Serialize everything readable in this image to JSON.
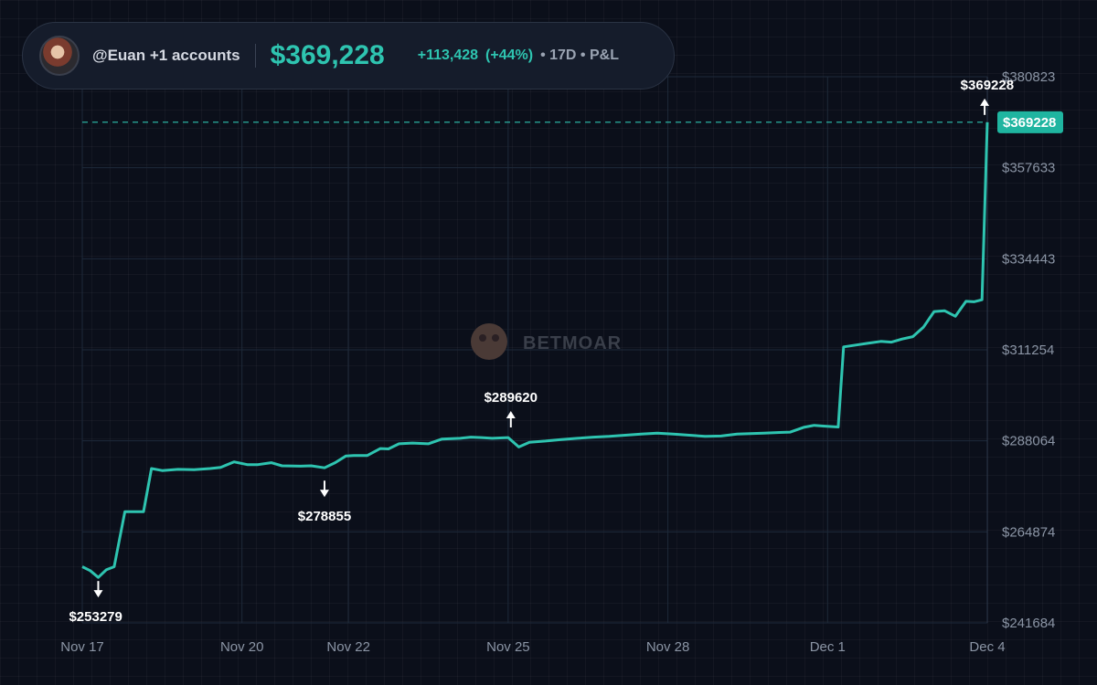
{
  "header": {
    "account": "@Euan +1 accounts",
    "total": "$369,228",
    "change": "+113,428",
    "change_pct": "(+44%)",
    "meta": "• 17D • P&L"
  },
  "watermark": "BETMOAR",
  "colors": {
    "line": "#2ec4b0",
    "background": "#0b0f1a",
    "grid": "#1e2a3a"
  },
  "chart_data": {
    "type": "line",
    "x_ticks": [
      {
        "label": "Nov 17",
        "day": 0
      },
      {
        "label": "Nov 20",
        "day": 3
      },
      {
        "label": "Nov 22",
        "day": 5
      },
      {
        "label": "Nov 25",
        "day": 8
      },
      {
        "label": "Nov 28",
        "day": 11
      },
      {
        "label": "Dec 1",
        "day": 14
      },
      {
        "label": "Dec 4",
        "day": 17
      }
    ],
    "y_ticks": [
      241684,
      264874,
      288064,
      311254,
      334443,
      357633,
      380823
    ],
    "y_tick_labels": [
      "$241684",
      "$264874",
      "$288064",
      "$311254",
      "$334443",
      "$357633",
      "$380823"
    ],
    "ylim": [
      241684,
      380823
    ],
    "xlim": [
      0,
      17
    ],
    "current": {
      "value": 369228,
      "label": "$369228"
    },
    "annotations": [
      {
        "label": "$253279",
        "day": 0.3,
        "value": 253279,
        "dir": "down"
      },
      {
        "label": "$278855",
        "day": 4.55,
        "value": 278855,
        "dir": "down"
      },
      {
        "label": "$289620",
        "day": 8.05,
        "value": 289620,
        "dir": "up"
      },
      {
        "label": "$369228",
        "day": 16.95,
        "value": 369228,
        "dir": "up"
      }
    ],
    "series": [
      {
        "points": [
          [
            0.0,
            256000
          ],
          [
            0.15,
            255000
          ],
          [
            0.3,
            253279
          ],
          [
            0.45,
            255200
          ],
          [
            0.6,
            256000
          ],
          [
            0.8,
            270000
          ],
          [
            1.15,
            270000
          ],
          [
            1.3,
            281000
          ],
          [
            1.5,
            280500
          ],
          [
            1.8,
            280800
          ],
          [
            2.1,
            280700
          ],
          [
            2.4,
            281000
          ],
          [
            2.6,
            281300
          ],
          [
            2.85,
            282700
          ],
          [
            3.1,
            282000
          ],
          [
            3.3,
            282000
          ],
          [
            3.55,
            282500
          ],
          [
            3.75,
            281700
          ],
          [
            4.1,
            281600
          ],
          [
            4.3,
            281700
          ],
          [
            4.55,
            281200
          ],
          [
            4.75,
            282500
          ],
          [
            4.95,
            284200
          ],
          [
            5.1,
            284300
          ],
          [
            5.35,
            284300
          ],
          [
            5.6,
            286100
          ],
          [
            5.75,
            286000
          ],
          [
            5.95,
            287300
          ],
          [
            6.2,
            287500
          ],
          [
            6.35,
            287400
          ],
          [
            6.5,
            287300
          ],
          [
            6.75,
            288500
          ],
          [
            7.1,
            288700
          ],
          [
            7.3,
            289000
          ],
          [
            7.5,
            288900
          ],
          [
            7.7,
            288700
          ],
          [
            8.0,
            288900
          ],
          [
            8.2,
            286500
          ],
          [
            8.4,
            287700
          ],
          [
            8.7,
            288000
          ],
          [
            9.0,
            288400
          ],
          [
            9.3,
            288700
          ],
          [
            9.6,
            289000
          ],
          [
            9.9,
            289200
          ],
          [
            10.2,
            289500
          ],
          [
            10.5,
            289800
          ],
          [
            10.8,
            290000
          ],
          [
            11.1,
            289800
          ],
          [
            11.4,
            289500
          ],
          [
            11.7,
            289200
          ],
          [
            12.0,
            289300
          ],
          [
            12.3,
            289800
          ],
          [
            12.55,
            289900
          ],
          [
            12.8,
            290000
          ],
          [
            13.1,
            290200
          ],
          [
            13.3,
            290300
          ],
          [
            13.55,
            291500
          ],
          [
            13.75,
            292000
          ],
          [
            13.95,
            291800
          ],
          [
            14.2,
            291600
          ],
          [
            14.3,
            312000
          ],
          [
            14.6,
            312600
          ],
          [
            14.75,
            312900
          ],
          [
            15.0,
            313400
          ],
          [
            15.2,
            313200
          ],
          [
            15.4,
            314000
          ],
          [
            15.6,
            314600
          ],
          [
            15.8,
            317000
          ],
          [
            16.0,
            321000
          ],
          [
            16.2,
            321200
          ],
          [
            16.4,
            319800
          ],
          [
            16.6,
            323600
          ],
          [
            16.75,
            323500
          ],
          [
            16.9,
            324000
          ],
          [
            17.0,
            369228
          ]
        ]
      }
    ]
  }
}
